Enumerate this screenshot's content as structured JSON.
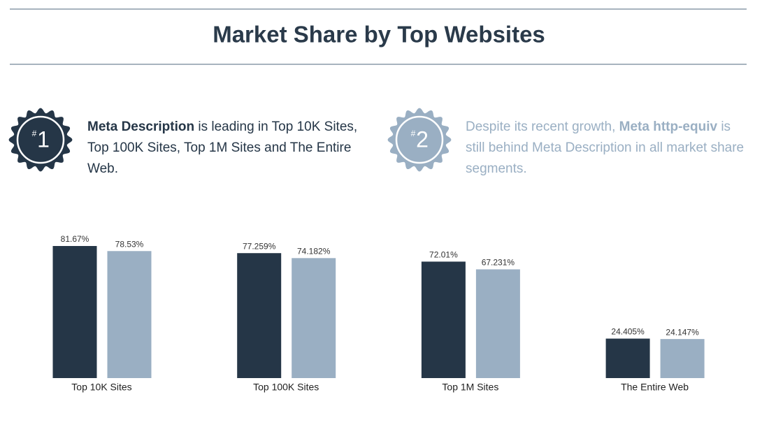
{
  "title": "Market Share by Top Websites",
  "callouts": [
    {
      "badge_symbol": "#",
      "badge_number": "1",
      "text_after": " is leading in Top 10K Sites, Top 100K Sites, Top 1M Sites and The Entire Web."
    },
    {
      "badge_symbol": "#",
      "badge_number": "2",
      "text_before": "Despite its recent growth, ",
      "text_after": " is still behind Meta Description in all market share segments."
    }
  ],
  "chart_data": {
    "type": "bar",
    "categories": [
      "Top 10K Sites",
      "Top 100K Sites",
      "Top 1M Sites",
      "The Entire Web"
    ],
    "series": [
      {
        "name": "Meta Description",
        "color": "#253647",
        "values": [
          81.67,
          77.259,
          72.01,
          24.405
        ],
        "value_labels": [
          "81.67%",
          "77.259%",
          "72.01%",
          "24.405%"
        ]
      },
      {
        "name": "Meta http-equiv",
        "color": "#9aafc3",
        "values": [
          78.53,
          74.182,
          67.231,
          24.147
        ],
        "value_labels": [
          "78.53%",
          "74.182%",
          "67.231%",
          "24.147%"
        ]
      }
    ]
  }
}
